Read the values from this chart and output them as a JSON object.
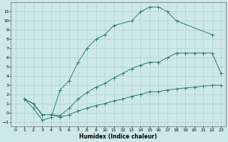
{
  "xlabel": "Humidex (Indice chaleur)",
  "bg_color": "#cce8e8",
  "line_color": "#2e7d6e",
  "grid_color": "#aacccc",
  "xlim": [
    -0.5,
    23.5
  ],
  "ylim": [
    -1.5,
    12
  ],
  "xticks": [
    0,
    1,
    2,
    3,
    4,
    5,
    6,
    7,
    8,
    9,
    10,
    11,
    12,
    13,
    14,
    15,
    16,
    17,
    18,
    19,
    20,
    21,
    22,
    23
  ],
  "yticks": [
    -1,
    0,
    1,
    2,
    3,
    4,
    5,
    6,
    7,
    8,
    9,
    10,
    11
  ],
  "line1_x": [
    1,
    2,
    3,
    4,
    5,
    6,
    7,
    8,
    9,
    10,
    11,
    13,
    14,
    15,
    16,
    17,
    18,
    22
  ],
  "line1_y": [
    1.5,
    0.5,
    -0.8,
    -0.5,
    2.5,
    3.5,
    5.5,
    7.0,
    8.0,
    8.5,
    9.5,
    10.0,
    11.0,
    11.5,
    11.5,
    11.0,
    10.0,
    8.5
  ],
  "line2_x": [
    1,
    2,
    3,
    4,
    5,
    6,
    7,
    8,
    9,
    10,
    11,
    12,
    13,
    14,
    15,
    16,
    17,
    18,
    19,
    20,
    21,
    22,
    23
  ],
  "line2_y": [
    1.5,
    1.0,
    -0.2,
    -0.2,
    -0.3,
    0.5,
    1.5,
    2.2,
    2.8,
    3.2,
    3.8,
    4.3,
    4.8,
    5.2,
    5.5,
    5.5,
    6.0,
    6.5,
    6.5,
    6.5,
    6.5,
    6.5,
    4.3
  ],
  "line3_x": [
    1,
    2,
    3,
    4,
    5,
    6,
    7,
    8,
    9,
    10,
    11,
    12,
    13,
    14,
    15,
    16,
    17,
    18,
    19,
    20,
    21,
    22,
    23
  ],
  "line3_y": [
    1.5,
    1.0,
    -0.2,
    -0.2,
    -0.5,
    -0.2,
    0.2,
    0.5,
    0.8,
    1.0,
    1.3,
    1.5,
    1.8,
    2.0,
    2.3,
    2.3,
    2.5,
    2.6,
    2.7,
    2.8,
    2.9,
    3.0,
    3.0
  ]
}
